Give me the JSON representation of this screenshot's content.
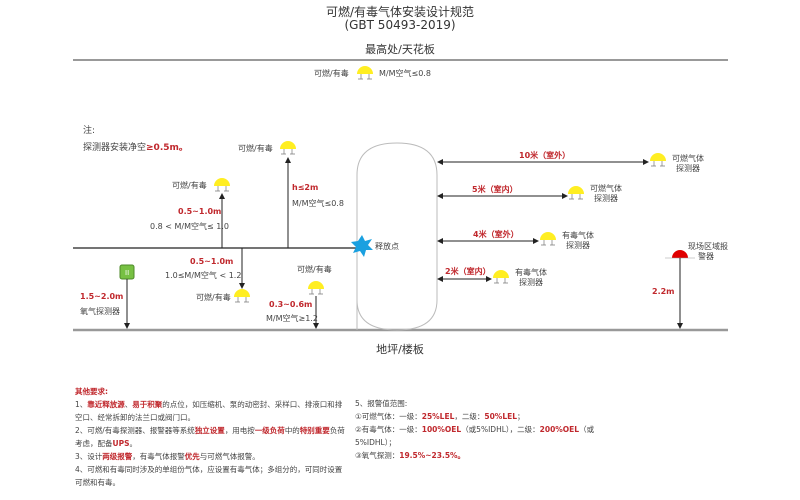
{
  "title": {
    "line1": "可燃/有毒气体安装设计规范",
    "line2": "(GBT 50493-2019)"
  },
  "ceiling_label": "最高处/天花板",
  "floor_label": "地坪/楼板",
  "release_point": "释放点",
  "note": {
    "heading": "注:",
    "text": "探测器安装净空",
    "value": "≥0.5m。"
  },
  "detectors": {
    "top": {
      "label": "可燃/有毒",
      "ratio": "M/M空气≤0.8"
    },
    "high": {
      "label": "可燃/有毒",
      "height": "h≤2m",
      "ratio": "M/M空气≤0.8"
    },
    "mid": {
      "label": "可燃/有毒",
      "height": "0.5~1.0m",
      "ratio": "0.8 < M/M空气≤ 1.0"
    },
    "below": {
      "label": "可燃/有毒",
      "height": "0.5~1.0m",
      "ratio": "1.0≤M/M空气 < 1.2"
    },
    "low": {
      "label": "可燃/有毒",
      "height": "0.3~0.6m",
      "ratio": "M/M空气≥1.2"
    },
    "oxygen": {
      "label": "氧气探测器",
      "height": "1.5~2.0m"
    }
  },
  "distances": [
    {
      "distance": "10米（室外）",
      "label1": "可燃气体",
      "label2": "探测器"
    },
    {
      "distance": "5米（室内）",
      "label1": "可燃气体",
      "label2": "探测器"
    },
    {
      "distance": "4米（室外）",
      "label1": "有毒气体",
      "label2": "探测器"
    },
    {
      "distance": "2米（室内）",
      "label1": "有毒气体",
      "label2": "探测器"
    }
  ],
  "alarm": {
    "label1": "现场区域报",
    "label2": "警器",
    "height": "2.2m"
  },
  "requirements": {
    "heading": "其他要求:",
    "lines": [
      [
        {
          "t": "1、"
        },
        {
          "t": "靠近释放源",
          "r": true
        },
        {
          "t": "、"
        },
        {
          "t": "易于积聚",
          "r": true
        },
        {
          "t": "的点位，如压缩机、泵的动密封、采样口、排液口和排空口、经常拆卸的法兰口或阀门口。"
        }
      ],
      [
        {
          "t": "2、可燃/有毒探测器、报警器等系统"
        },
        {
          "t": "独立设置",
          "r": true
        },
        {
          "t": "，用电按"
        },
        {
          "t": "一级负荷",
          "r": true
        },
        {
          "t": "中的"
        },
        {
          "t": "特别重要",
          "r": true
        },
        {
          "t": "负荷考虑，配备"
        },
        {
          "t": "UPS",
          "r": true
        },
        {
          "t": "。"
        }
      ],
      [
        {
          "t": "3、设计"
        },
        {
          "t": "两级报警",
          "r": true
        },
        {
          "t": "，有毒气体报警"
        },
        {
          "t": "优先",
          "r": true
        },
        {
          "t": "与可燃气体报警。"
        }
      ],
      [
        {
          "t": "4、可燃和有毒同时涉及的单组份气体，应设置有毒气体；多组分的，可同时设置可燃和有毒。"
        }
      ]
    ]
  },
  "alarm_ranges": {
    "heading": "5、报警值范围:",
    "lines": [
      [
        {
          "t": "①可燃气体：一级："
        },
        {
          "t": "25%LEL",
          "r": true
        },
        {
          "t": "，二级："
        },
        {
          "t": "50%LEL",
          "r": true
        },
        {
          "t": "；"
        }
      ],
      [
        {
          "t": "②有毒气体：一级："
        },
        {
          "t": "100%OEL",
          "r": true
        },
        {
          "t": "（或5%IDHL），二级："
        },
        {
          "t": "200%OEL",
          "r": true
        },
        {
          "t": "（或5%IDHL）；"
        }
      ],
      [
        {
          "t": "③氧气探测："
        },
        {
          "t": "19.5%~23.5%。",
          "r": true
        }
      ]
    ]
  },
  "colors": {
    "detector": "#ffee22",
    "alarm": "#e00000",
    "oxygen": "#77c043",
    "red_text": "#c0282d",
    "release_star": "#1aa0e0"
  }
}
